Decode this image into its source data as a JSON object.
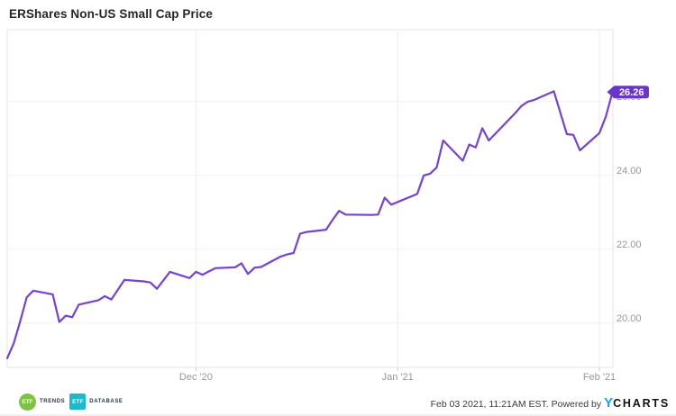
{
  "title": "ERShares Non-US Small Cap Price",
  "chart_data": {
    "type": "line",
    "title": "ERShares Non-US Small Cap Price",
    "x": [
      "2020-11-02",
      "2020-11-03",
      "2020-11-04",
      "2020-11-05",
      "2020-11-06",
      "2020-11-09",
      "2020-11-10",
      "2020-11-11",
      "2020-11-12",
      "2020-11-13",
      "2020-11-16",
      "2020-11-17",
      "2020-11-18",
      "2020-11-19",
      "2020-11-20",
      "2020-11-23",
      "2020-11-24",
      "2020-11-25",
      "2020-11-27",
      "2020-11-30",
      "2020-12-01",
      "2020-12-02",
      "2020-12-03",
      "2020-12-04",
      "2020-12-07",
      "2020-12-08",
      "2020-12-09",
      "2020-12-10",
      "2020-12-11",
      "2020-12-14",
      "2020-12-15",
      "2020-12-16",
      "2020-12-17",
      "2020-12-18",
      "2020-12-21",
      "2020-12-22",
      "2020-12-23",
      "2020-12-24",
      "2020-12-28",
      "2020-12-29",
      "2020-12-30",
      "2020-12-31",
      "2021-01-04",
      "2021-01-05",
      "2021-01-06",
      "2021-01-07",
      "2021-01-08",
      "2021-01-11",
      "2021-01-12",
      "2021-01-13",
      "2021-01-14",
      "2021-01-15",
      "2021-01-19",
      "2021-01-20",
      "2021-01-21",
      "2021-01-22",
      "2021-01-25",
      "2021-01-26",
      "2021-01-27",
      "2021-01-28",
      "2021-01-29",
      "2021-02-01",
      "2021-02-02",
      "2021-02-03"
    ],
    "values": [
      19.05,
      19.45,
      20.05,
      20.7,
      20.88,
      20.78,
      20.03,
      20.2,
      20.16,
      20.5,
      20.62,
      20.73,
      20.64,
      20.9,
      21.17,
      21.13,
      21.1,
      20.93,
      21.39,
      21.22,
      21.39,
      21.31,
      21.4,
      21.49,
      21.51,
      21.62,
      21.33,
      21.5,
      21.52,
      21.8,
      21.86,
      21.9,
      22.42,
      22.47,
      22.53,
      22.8,
      23.04,
      22.94,
      22.93,
      22.94,
      23.4,
      23.21,
      23.5,
      24.0,
      24.05,
      24.22,
      24.95,
      24.4,
      24.84,
      24.76,
      25.28,
      24.95,
      25.68,
      25.88,
      26.0,
      26.05,
      26.28,
      25.7,
      25.12,
      25.1,
      24.68,
      25.15,
      25.6,
      26.26
    ],
    "last_price_label": "26.26",
    "y_ticks": [
      20,
      22,
      24,
      26
    ],
    "y_tick_labels": [
      "20.00",
      "22.00",
      "24.00",
      "26.00"
    ],
    "x_gridlines": [
      "2020-12-01",
      "2021-01-01",
      "2021-02-01"
    ],
    "x_tick_labels": [
      "Dec '20",
      "Jan '21",
      "Feb '21"
    ],
    "ylim": [
      18.8,
      27.95
    ],
    "grid": true,
    "legend": "none",
    "line_color": "#7642D3",
    "badge_color": "#6A36C9",
    "axis_label_color": "#979797"
  },
  "footer": {
    "etf_trends": {
      "abbr": "ETF",
      "label": "TRENDS"
    },
    "etf_database": {
      "abbr": "ETF",
      "label": "DATABASE"
    },
    "timestamp": "Feb 03 2021, 11:21AM EST. Powered by",
    "ycharts_y": "Y",
    "ycharts_rest": "CHARTS"
  }
}
